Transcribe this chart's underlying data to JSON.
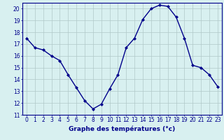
{
  "hours": [
    0,
    1,
    2,
    3,
    4,
    5,
    6,
    7,
    8,
    9,
    10,
    11,
    12,
    13,
    14,
    15,
    16,
    17,
    18,
    19,
    20,
    21,
    22,
    23
  ],
  "temps": [
    17.5,
    16.7,
    16.5,
    16.0,
    15.6,
    14.4,
    13.3,
    12.2,
    11.5,
    11.9,
    13.2,
    14.4,
    16.7,
    17.5,
    19.1,
    20.0,
    20.3,
    20.2,
    19.3,
    17.5,
    15.2,
    15.0,
    14.4,
    13.4
  ],
  "line_color": "#00008B",
  "marker": "D",
  "marker_size": 2,
  "bg_color": "#d8f0f0",
  "grid_color": "#b0c8c8",
  "xlabel": "Graphe des températures (°c)",
  "xlabel_color": "#00008B",
  "tick_color": "#00008B",
  "ylim": [
    11,
    20.5
  ],
  "xlim": [
    -0.5,
    23.5
  ],
  "yticks": [
    11,
    12,
    13,
    14,
    15,
    16,
    17,
    18,
    19,
    20
  ],
  "xticks": [
    0,
    1,
    2,
    3,
    4,
    5,
    6,
    7,
    8,
    9,
    10,
    11,
    12,
    13,
    14,
    15,
    16,
    17,
    18,
    19,
    20,
    21,
    22,
    23
  ],
  "spine_color": "#00008B",
  "label_fontsize": 6.5,
  "tick_fontsize": 5.5,
  "linewidth": 1.0
}
